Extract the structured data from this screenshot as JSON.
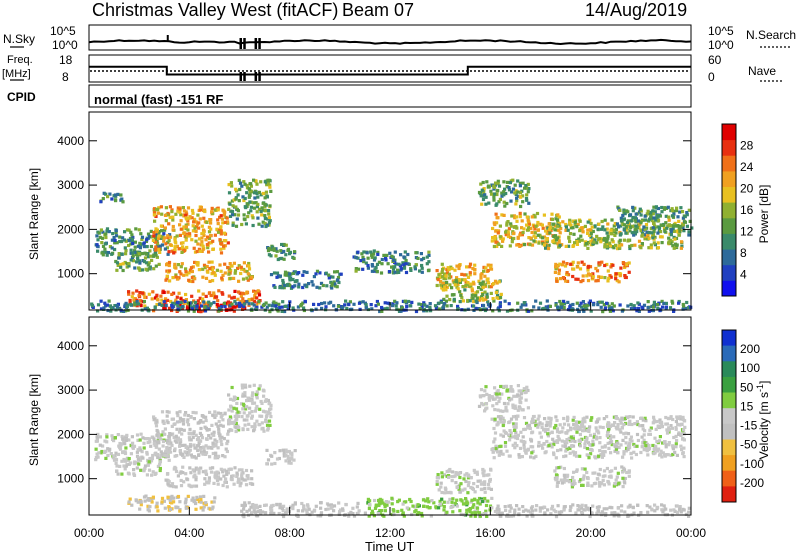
{
  "header": {
    "title": "Christmas Valley West (fitACF)",
    "beam": "Beam 07",
    "date": "14/Aug/2019"
  },
  "panels": {
    "nsky_label": "N.Sky",
    "nsky_ticks": [
      "10^5",
      "10^0"
    ],
    "nsearch_label": "N.Search",
    "nsearch_ticks": [
      "10^5",
      "10^0"
    ],
    "freq_label_1": "Freq.",
    "freq_label_2": "[MHz]",
    "freq_ticks": [
      "18",
      "8"
    ],
    "nave_label": "Nave",
    "nave_ticks": [
      "60",
      "0"
    ],
    "cpid_label": "CPID",
    "cpid_text": "normal (fast) -151 RF"
  },
  "colors": {
    "power": [
      "#1010ee",
      "#2040c0",
      "#2d6a9a",
      "#3a8a6a",
      "#5a9a40",
      "#90b030",
      "#e8c020",
      "#f0a020",
      "#f07018",
      "#e83010",
      "#e00000"
    ],
    "velocity": [
      "#1030d0",
      "#2a6ab8",
      "#2a8a5a",
      "#3aa040",
      "#80cc40",
      "#c8c8c8",
      "#c0c0c0",
      "#f0c040",
      "#f0a020",
      "#f06018",
      "#e02010"
    ]
  },
  "chart_data": [
    {
      "type": "heatmap",
      "name": "power",
      "ylabel": "Slant Range [km]",
      "yticks": [
        1000,
        2000,
        3000,
        4000
      ],
      "ylim": [
        180,
        4650
      ],
      "xlim_hours": [
        0,
        24
      ],
      "colorbar_label": "Power [dB]",
      "colorbar_ticks": [
        "4",
        "8",
        "12",
        "16",
        "20",
        "24",
        "28"
      ],
      "colorbar_range": [
        0,
        30
      ],
      "regions": [
        {
          "x": [
            0.2,
            3.2
          ],
          "y": [
            1450,
            2050
          ],
          "value": 10
        },
        {
          "x": [
            0.4,
            1.3
          ],
          "y": [
            2650,
            2900
          ],
          "value": 9
        },
        {
          "x": [
            1.0,
            2.8
          ],
          "y": [
            1100,
            1500
          ],
          "value": 12
        },
        {
          "x": [
            2.5,
            5.5
          ],
          "y": [
            1500,
            2550
          ],
          "value": 20
        },
        {
          "x": [
            3.0,
            6.5
          ],
          "y": [
            850,
            1300
          ],
          "value": 19
        },
        {
          "x": [
            1.5,
            6.8
          ],
          "y": [
            300,
            650
          ],
          "value": 23
        },
        {
          "x": [
            2.5,
            6.2
          ],
          "y": [
            180,
            350
          ],
          "value": 27
        },
        {
          "x": [
            5.5,
            7.2
          ],
          "y": [
            2100,
            3150
          ],
          "value": 12
        },
        {
          "x": [
            7.0,
            8.2
          ],
          "y": [
            1350,
            1700
          ],
          "value": 10
        },
        {
          "x": [
            7.2,
            10.0
          ],
          "y": [
            700,
            1100
          ],
          "value": 9
        },
        {
          "x": [
            10.5,
            13.5
          ],
          "y": [
            1050,
            1550
          ],
          "value": 9
        },
        {
          "x": [
            13.8,
            16.0
          ],
          "y": [
            700,
            1250
          ],
          "value": 19
        },
        {
          "x": [
            14.0,
            16.5
          ],
          "y": [
            400,
            900
          ],
          "value": 15
        },
        {
          "x": [
            15.5,
            17.5
          ],
          "y": [
            2550,
            3150
          ],
          "value": 12
        },
        {
          "x": [
            16.0,
            18.8
          ],
          "y": [
            1650,
            2400
          ],
          "value": 18
        },
        {
          "x": [
            18.0,
            23.7
          ],
          "y": [
            1600,
            2250
          ],
          "value": 15
        },
        {
          "x": [
            18.5,
            21.5
          ],
          "y": [
            850,
            1300
          ],
          "value": 21
        },
        {
          "x": [
            21.0,
            24.0
          ],
          "y": [
            1900,
            2550
          ],
          "value": 11
        },
        {
          "x": [
            0.0,
            24.0
          ],
          "y": [
            180,
            420
          ],
          "value": 8
        }
      ]
    },
    {
      "type": "heatmap",
      "name": "velocity",
      "ylabel": "Slant Range [km]",
      "xlabel": "Time UT",
      "xticks": [
        "00:00",
        "04:00",
        "08:00",
        "12:00",
        "16:00",
        "20:00",
        "00:00"
      ],
      "yticks": [
        1000,
        2000,
        3000,
        4000
      ],
      "ylim": [
        180,
        4650
      ],
      "xlim_hours": [
        0,
        24
      ],
      "colorbar_label": "Velocity [m s^-1]",
      "colorbar_ticks": [
        "200",
        "100",
        "50",
        "15",
        "-15",
        "-50",
        "-100",
        "-200"
      ],
      "colorbar_range": [
        -250,
        250
      ],
      "regions": [
        {
          "x": [
            0.2,
            3.2
          ],
          "y": [
            1450,
            2050
          ],
          "value": 0
        },
        {
          "x": [
            1.0,
            2.8
          ],
          "y": [
            1100,
            1500
          ],
          "value": 0
        },
        {
          "x": [
            2.5,
            5.5
          ],
          "y": [
            1500,
            2550
          ],
          "value": -20
        },
        {
          "x": [
            3.0,
            6.5
          ],
          "y": [
            850,
            1300
          ],
          "value": -10
        },
        {
          "x": [
            1.5,
            5.0
          ],
          "y": [
            300,
            650
          ],
          "value": -60
        },
        {
          "x": [
            5.5,
            7.2
          ],
          "y": [
            2100,
            3150
          ],
          "value": 0
        },
        {
          "x": [
            7.0,
            8.2
          ],
          "y": [
            1350,
            1700
          ],
          "value": -20
        },
        {
          "x": [
            13.8,
            16.0
          ],
          "y": [
            700,
            1250
          ],
          "value": 0
        },
        {
          "x": [
            15.5,
            17.5
          ],
          "y": [
            2550,
            3150
          ],
          "value": 0
        },
        {
          "x": [
            16.0,
            23.7
          ],
          "y": [
            1500,
            2450
          ],
          "value": 0
        },
        {
          "x": [
            18.5,
            21.5
          ],
          "y": [
            850,
            1300
          ],
          "value": 0
        },
        {
          "x": [
            6.0,
            11.0
          ],
          "y": [
            180,
            500
          ],
          "value": -30
        },
        {
          "x": [
            11.0,
            16.0
          ],
          "y": [
            180,
            600
          ],
          "value": 40
        },
        {
          "x": [
            16.0,
            24.0
          ],
          "y": [
            180,
            450
          ],
          "value": -25
        }
      ]
    }
  ]
}
